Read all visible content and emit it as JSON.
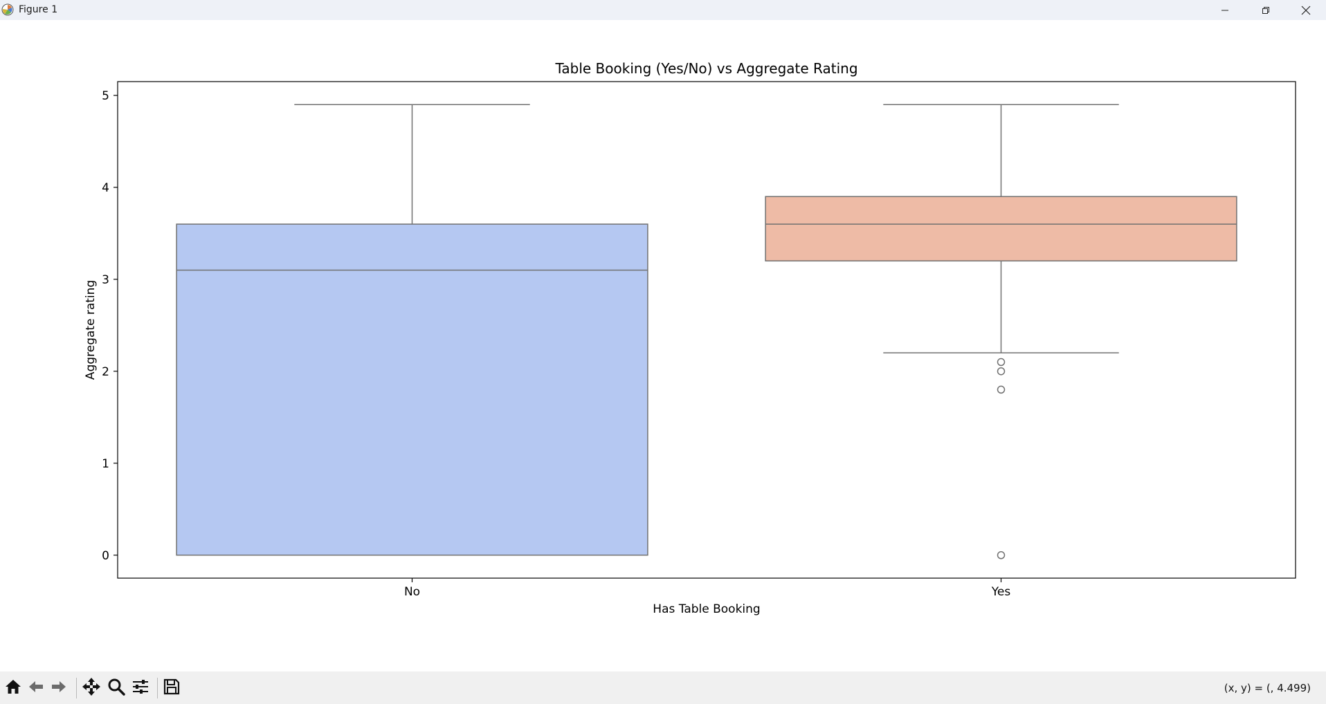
{
  "window": {
    "title": "Figure 1",
    "icons": {
      "app": "matplotlib-icon",
      "minimize": "minimize-icon",
      "maximize": "restore-icon",
      "close": "close-icon"
    }
  },
  "toolbar": {
    "buttons": [
      "home-icon",
      "back-arrow-icon",
      "forward-arrow-icon",
      "pan-icon",
      "zoom-icon",
      "configure-subplots-icon",
      "save-icon"
    ],
    "coords": "(x, y) = (, 4.499)"
  },
  "chart_data": {
    "type": "box",
    "title": "Table Booking (Yes/No) vs Aggregate Rating",
    "xlabel": "Has Table Booking",
    "ylabel": "Aggregate rating",
    "categories": [
      "No",
      "Yes"
    ],
    "ylim": [
      -0.25,
      5.15
    ],
    "yticks": [
      0,
      1,
      2,
      3,
      4,
      5
    ],
    "grid": false,
    "boxes": [
      {
        "category": "No",
        "color": "#b5c8f2",
        "whisker_low": 0.0,
        "q1": 0.0,
        "median": 3.1,
        "q3": 3.6,
        "whisker_high": 4.9,
        "outliers": []
      },
      {
        "category": "Yes",
        "color": "#eebba6",
        "whisker_low": 2.2,
        "q1": 3.2,
        "median": 3.6,
        "q3": 3.9,
        "whisker_high": 4.9,
        "outliers": [
          2.1,
          2.0,
          1.8,
          0.0
        ]
      }
    ],
    "line_color": "#707070"
  }
}
